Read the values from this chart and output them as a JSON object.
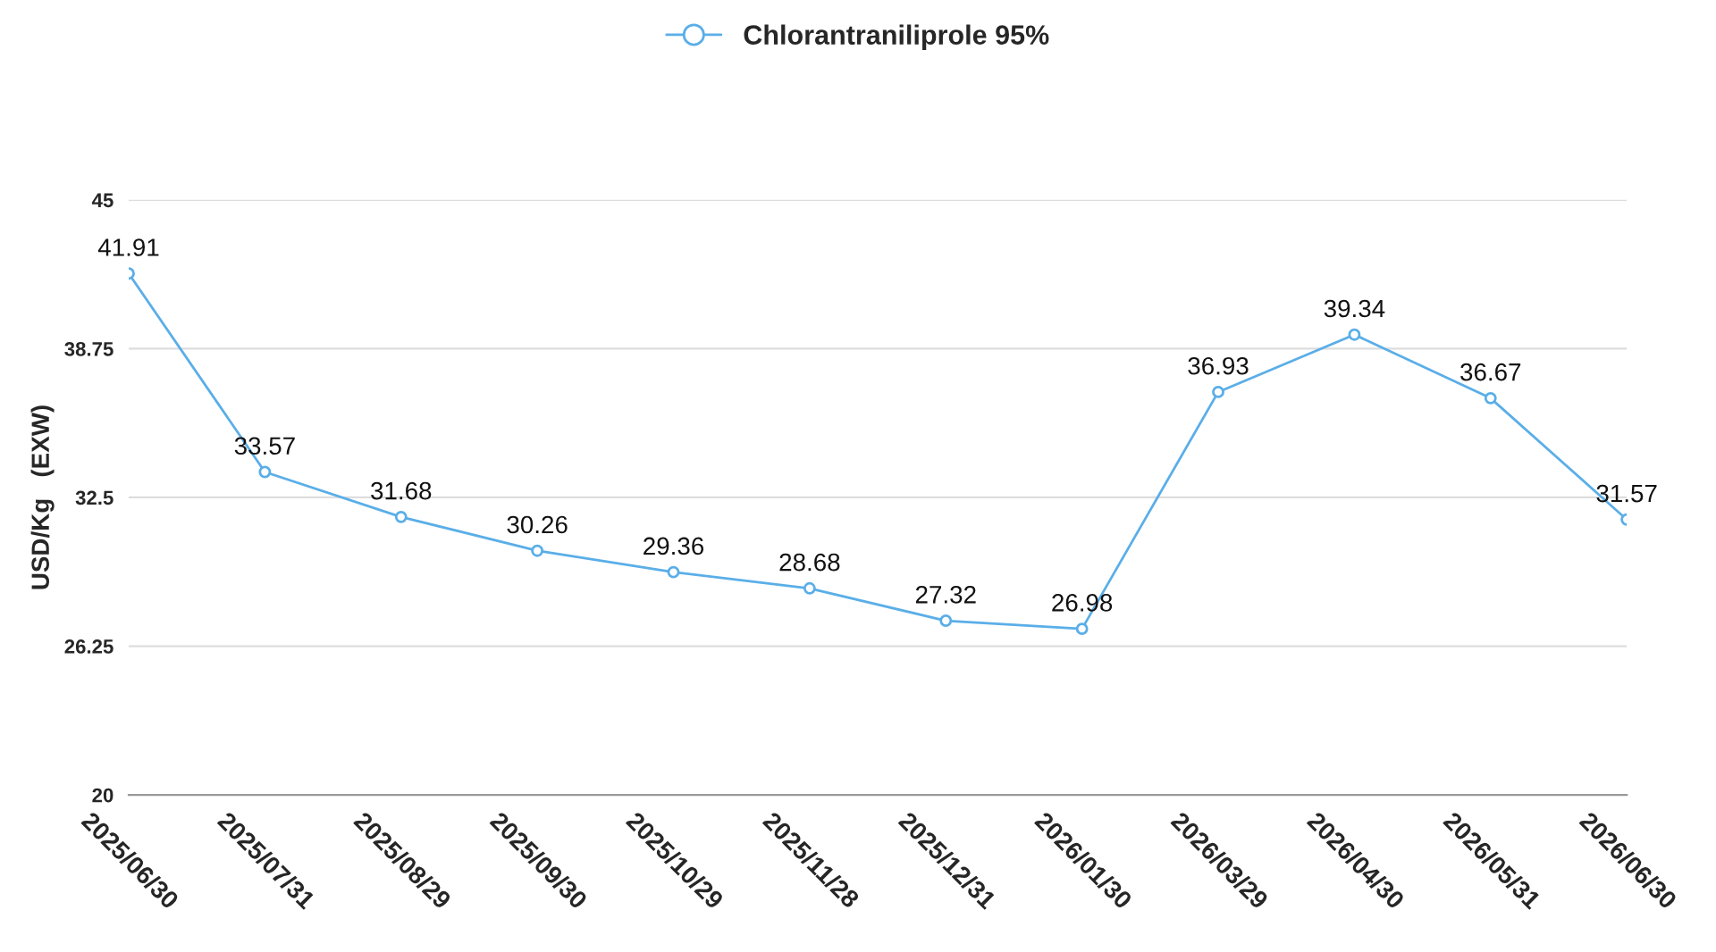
{
  "chart_data": {
    "type": "line",
    "ylabel": "USD/Kg   (EXW)",
    "categories": [
      "2025/06/30",
      "2025/07/31",
      "2025/08/29",
      "2025/09/30",
      "2025/10/29",
      "2025/11/28",
      "2025/12/31",
      "2026/01/30",
      "2026/03/29",
      "2026/04/30",
      "2026/05/31",
      "2026/06/30"
    ],
    "series": [
      {
        "name": "Chlorantraniliprole 95%",
        "color": "#5aaee8",
        "values": [
          41.91,
          33.57,
          31.68,
          30.26,
          29.36,
          28.68,
          27.32,
          26.98,
          36.93,
          39.34,
          36.67,
          31.57
        ]
      }
    ],
    "ylim": [
      20,
      45
    ],
    "yticks": [
      20,
      26.25,
      32.5,
      38.75,
      45
    ],
    "grid": "y",
    "legend": "top",
    "marker": "circle",
    "line_style": "solid",
    "data_labels": true
  }
}
